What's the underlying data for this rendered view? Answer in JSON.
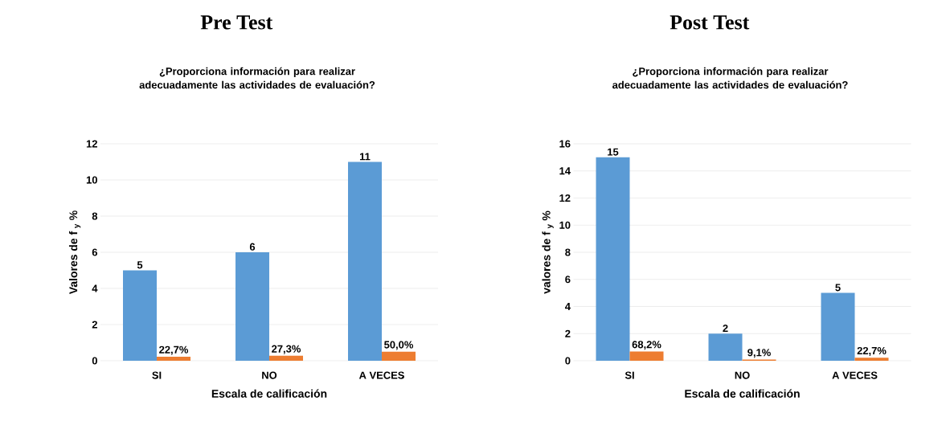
{
  "chart_data": [
    {
      "type": "bar",
      "title": "Pre Test",
      "subtitle": "¿Proporciona información para realizar adecuadamente las actividades de evaluación?",
      "xlabel": "Escala de calificación",
      "ylabel": "Valores de f $_{y}$ %",
      "categories": [
        "SI",
        "NO",
        "A VECES"
      ],
      "series": [
        {
          "color": "#5b9bd5",
          "values": [
            5,
            6,
            11
          ],
          "value_labels": [
            "5",
            "6",
            "11"
          ]
        },
        {
          "color": "#ed7d31",
          "values": [
            0.227,
            0.273,
            0.5
          ],
          "value_labels": [
            "22,7%",
            "27,3%",
            "50,0%"
          ]
        }
      ],
      "ylim": [
        0,
        12
      ],
      "yticks": [
        0,
        2,
        4,
        6,
        8,
        10,
        12
      ],
      "grid": "y"
    },
    {
      "type": "bar",
      "title": "Post Test",
      "subtitle": "¿Proporciona información para realizar adecuadamente las actividades de evaluación?",
      "xlabel": "Escala de calificación",
      "ylabel": "valores de f $_{y}$ %",
      "categories": [
        "SI",
        "NO",
        "A VECES"
      ],
      "series": [
        {
          "color": "#5b9bd5",
          "values": [
            15,
            2,
            5
          ],
          "value_labels": [
            "15",
            "2",
            "5"
          ]
        },
        {
          "color": "#ed7d31",
          "values": [
            0.682,
            0.091,
            0.227
          ],
          "value_labels": [
            "68,2%",
            "9,1%",
            "22,7%"
          ]
        }
      ],
      "ylim": [
        0,
        16
      ],
      "yticks": [
        0,
        2,
        4,
        6,
        8,
        10,
        12,
        14,
        16
      ],
      "grid": "y"
    }
  ]
}
